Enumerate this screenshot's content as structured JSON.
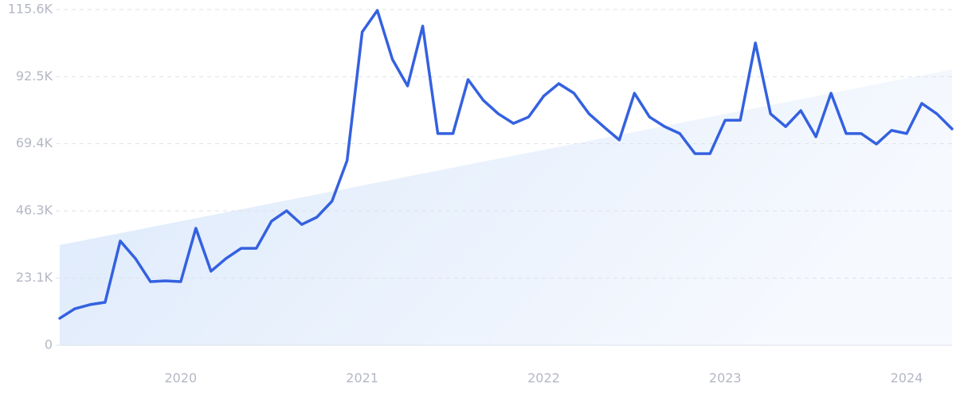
{
  "chart_data": {
    "type": "line",
    "categories": [
      null,
      null,
      null,
      null,
      null,
      null,
      null,
      null,
      "2020",
      null,
      null,
      null,
      null,
      null,
      null,
      null,
      null,
      null,
      null,
      null,
      "2021",
      null,
      null,
      null,
      null,
      null,
      null,
      null,
      null,
      null,
      null,
      null,
      "2022",
      null,
      null,
      null,
      null,
      null,
      null,
      null,
      null,
      null,
      null,
      null,
      "2023",
      null,
      null,
      null,
      null,
      null,
      null,
      null,
      null,
      null,
      null,
      null,
      "2024",
      null,
      null,
      null
    ],
    "series": [
      {
        "color": "#3461e0",
        "values": [
          9300,
          12600,
          14000,
          14800,
          35900,
          29900,
          21900,
          22200,
          21900,
          40300,
          25500,
          29900,
          33400,
          33400,
          42700,
          46300,
          41600,
          44100,
          49600,
          63600,
          107900,
          115300,
          98400,
          89300,
          109900,
          72900,
          72900,
          91500,
          84400,
          79700,
          76400,
          78600,
          85800,
          90100,
          86800,
          79700,
          75100,
          70700,
          86800,
          78600,
          75300,
          72900,
          66000,
          66000,
          77500,
          77500,
          104100,
          79700,
          75300,
          80800,
          71800,
          86800,
          72900,
          72900,
          69300,
          74000,
          72900,
          83300,
          79700,
          74500
        ]
      }
    ],
    "trend": [
      34500,
      95000
    ],
    "ylim": [
      0,
      115600
    ],
    "yticks": [
      0,
      {
        "value": 23100,
        "label": "23.1K"
      },
      {
        "value": 46300,
        "label": "46.3K"
      },
      {
        "value": 69400,
        "label": "69.4K"
      },
      {
        "value": 92500,
        "label": "92.5K"
      },
      {
        "value": 115600,
        "label": "115.6K"
      }
    ],
    "grid": true
  }
}
